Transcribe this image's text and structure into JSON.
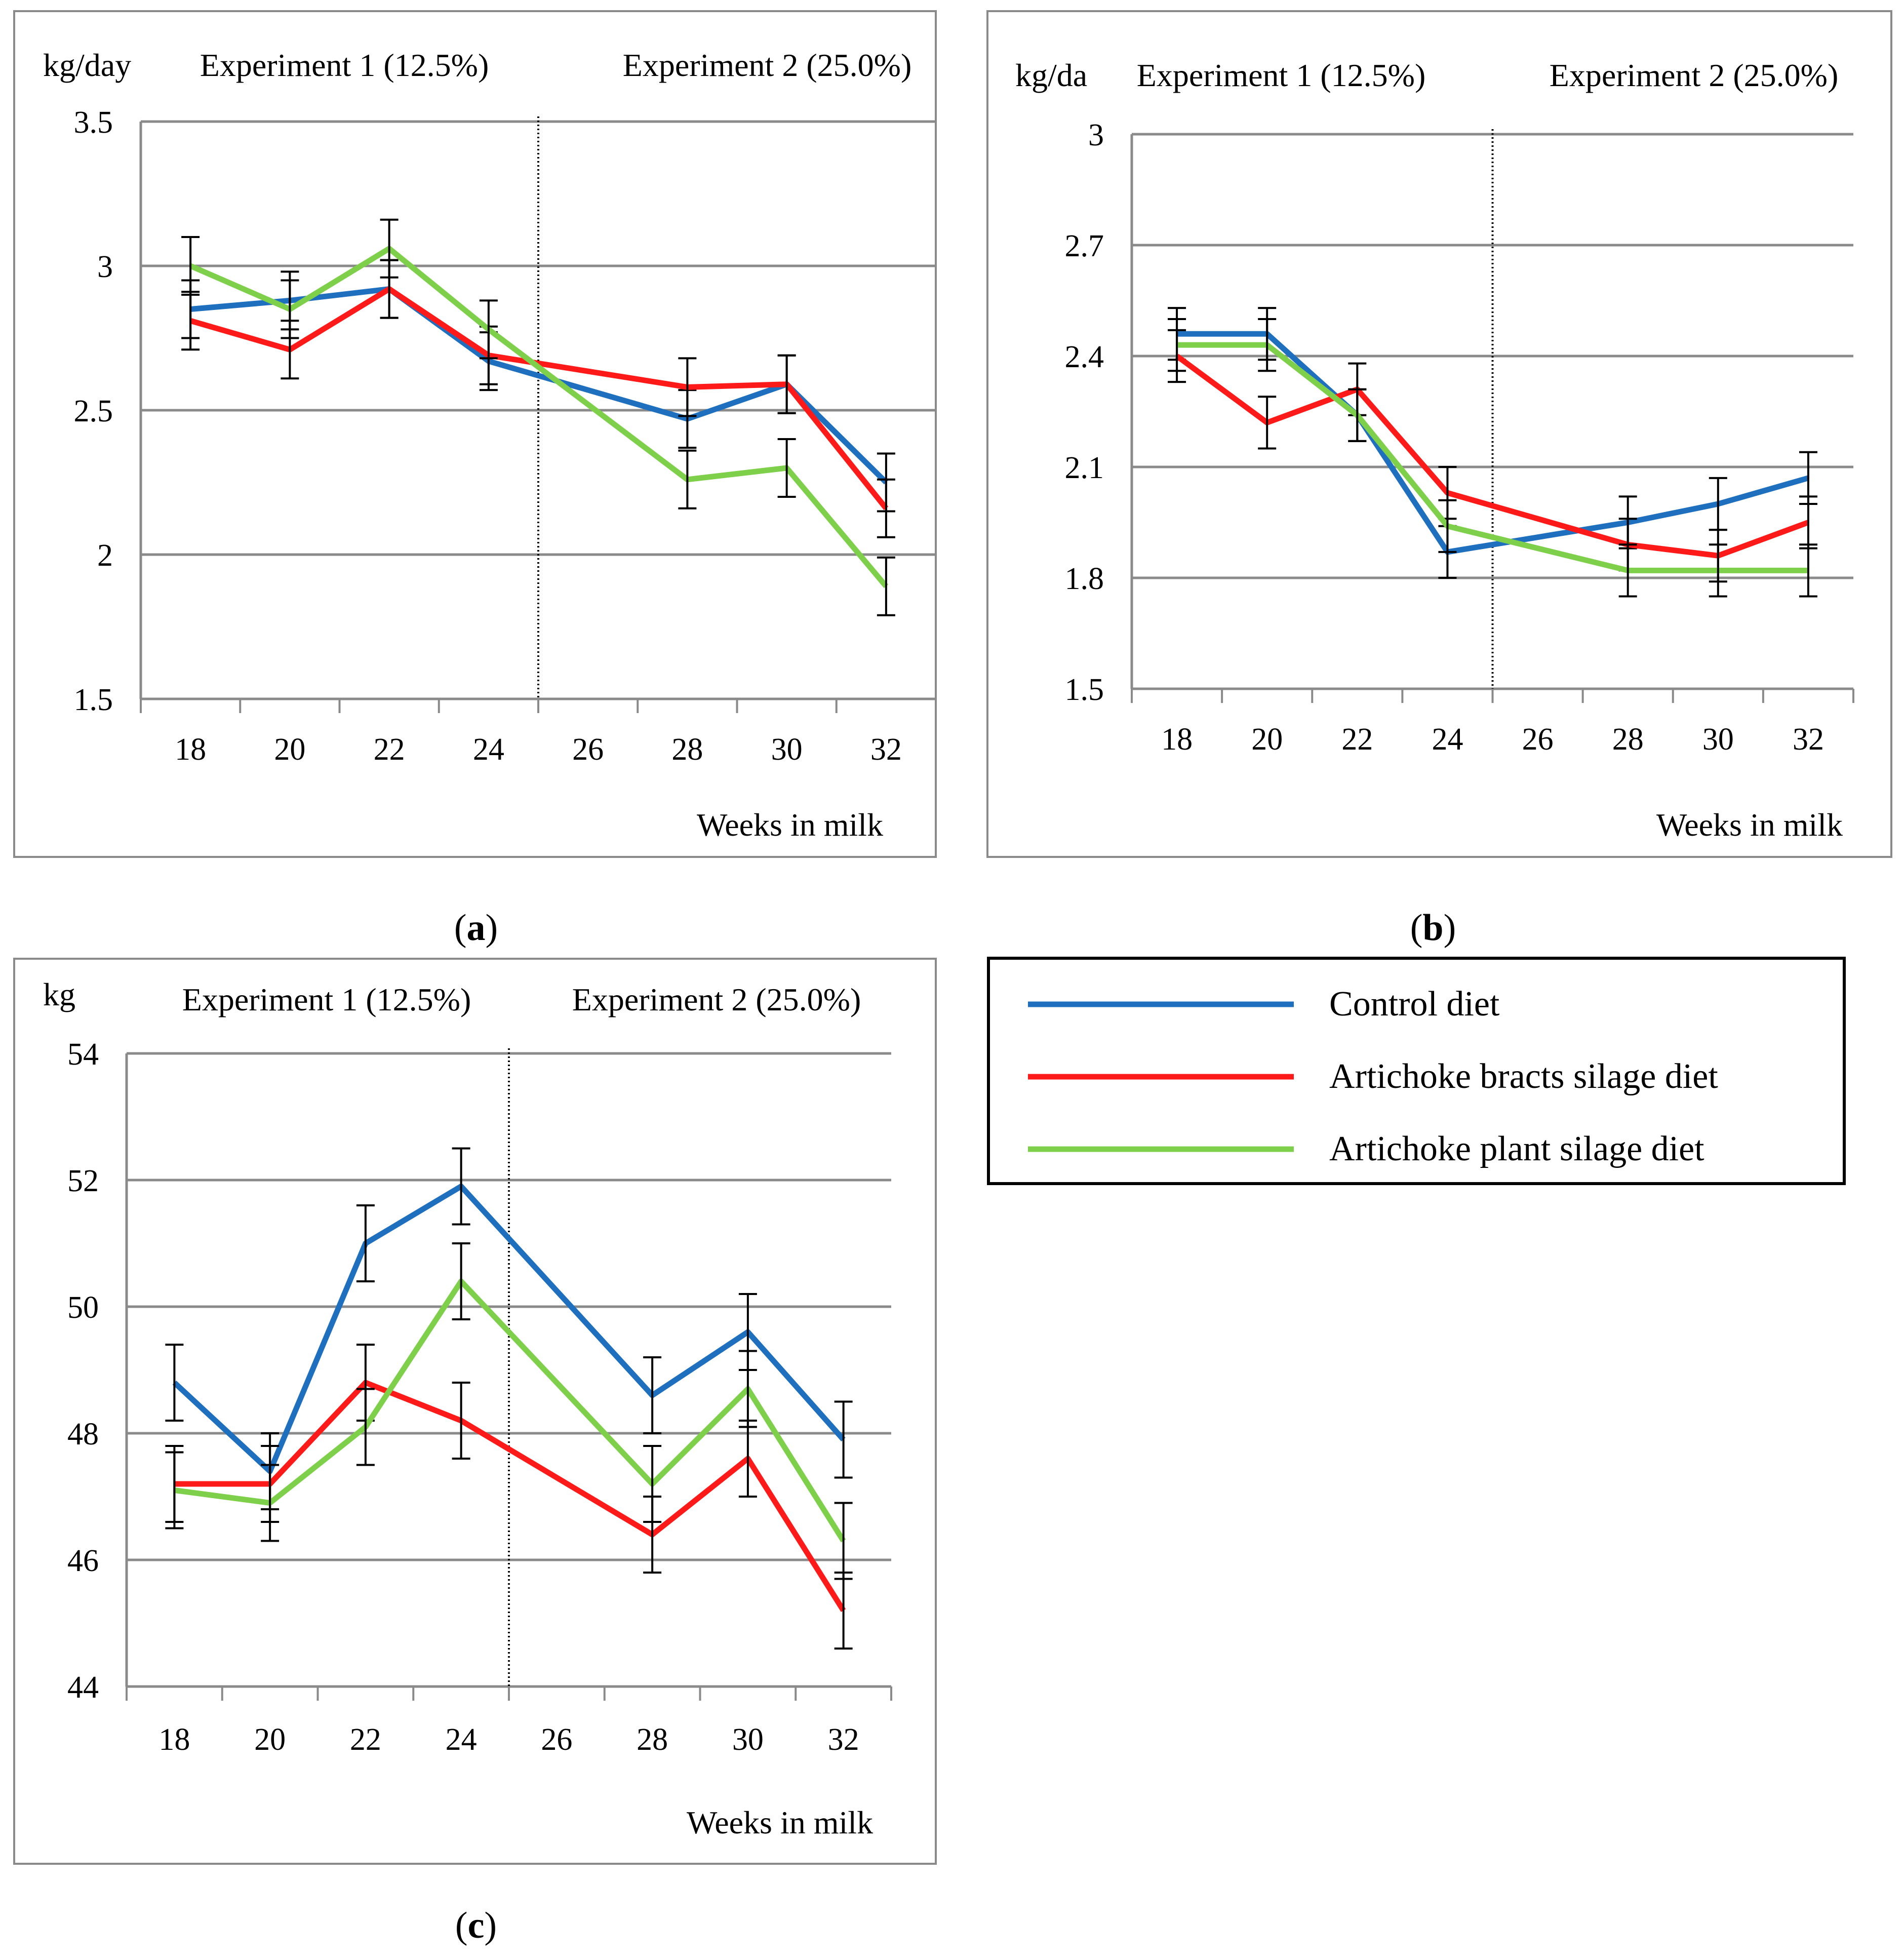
{
  "legend": {
    "items": [
      {
        "label": "Control diet",
        "color": "#1f6fbf"
      },
      {
        "label": "Artichoke bracts silage diet",
        "color": "#ff1a1a"
      },
      {
        "label": "Artichoke plant silage diet",
        "color": "#7ed04b"
      }
    ]
  },
  "chart_data": [
    {
      "id": "a",
      "type": "line",
      "caption": "a",
      "ylabel": "kg/day",
      "xlabel": "Weeks in milk",
      "ylim": [
        1.5,
        3.5
      ],
      "yticks": [
        "1.5",
        "2",
        "2.5",
        "3",
        "3.5"
      ],
      "ytick_values": [
        1.5,
        2,
        2.5,
        3,
        3.5
      ],
      "categories": [
        "18",
        "20",
        "22",
        "24",
        "26",
        "28",
        "30",
        "32"
      ],
      "experiment_labels": [
        "Experiment 1 (12.5%)",
        "Experiment 2 (25.0%)"
      ],
      "divider_after_week": 24,
      "grid": true,
      "series": [
        {
          "name": "Control diet",
          "values": [
            2.85,
            2.88,
            2.92,
            2.67,
            null,
            2.47,
            2.59,
            2.25
          ],
          "errors": [
            0.1,
            0.1,
            0.1,
            0.1,
            null,
            0.1,
            0.1,
            0.1
          ]
        },
        {
          "name": "Artichoke bracts silage diet",
          "values": [
            2.81,
            2.71,
            2.92,
            2.69,
            null,
            2.58,
            2.59,
            2.16
          ],
          "errors": [
            0.1,
            0.1,
            0.1,
            0.1,
            null,
            0.1,
            0.1,
            0.1
          ]
        },
        {
          "name": "Artichoke plant silage diet",
          "values": [
            3.0,
            2.85,
            3.06,
            2.78,
            null,
            2.26,
            2.3,
            1.89
          ],
          "errors": [
            0.1,
            0.1,
            0.1,
            0.1,
            null,
            0.1,
            0.1,
            0.1
          ]
        }
      ]
    },
    {
      "id": "b",
      "type": "line",
      "caption": "b",
      "ylabel": "kg/da",
      "xlabel": "Weeks in milk",
      "ylim": [
        1.5,
        3.0
      ],
      "yticks": [
        "1.5",
        "1.8",
        "2.1",
        "2.4",
        "2.7",
        "3"
      ],
      "ytick_values": [
        1.5,
        1.8,
        2.1,
        2.4,
        2.7,
        3.0
      ],
      "categories": [
        "18",
        "20",
        "22",
        "24",
        "26",
        "28",
        "30",
        "32"
      ],
      "experiment_labels": [
        "Experiment 1 (12.5%)",
        "Experiment 2 (25.0%)"
      ],
      "divider_after_week": 24,
      "grid": true,
      "series": [
        {
          "name": "Control diet",
          "values": [
            2.46,
            2.46,
            2.24,
            1.87,
            null,
            1.95,
            2.0,
            2.07
          ],
          "errors": [
            0.07,
            0.07,
            0.07,
            0.07,
            null,
            0.07,
            0.07,
            0.07
          ]
        },
        {
          "name": "Artichoke bracts silage diet",
          "values": [
            2.4,
            2.22,
            2.31,
            2.03,
            null,
            1.89,
            1.86,
            1.95
          ],
          "errors": [
            0.07,
            0.07,
            0.07,
            0.07,
            null,
            0.07,
            0.07,
            0.07
          ]
        },
        {
          "name": "Artichoke plant silage diet",
          "values": [
            2.43,
            2.43,
            2.24,
            1.94,
            null,
            1.82,
            1.82,
            1.82
          ],
          "errors": [
            0.07,
            0.07,
            0.07,
            0.07,
            null,
            0.07,
            0.07,
            0.07
          ]
        }
      ]
    },
    {
      "id": "c",
      "type": "line",
      "caption": "c",
      "ylabel": "kg",
      "xlabel": "Weeks in milk",
      "ylim": [
        44,
        54
      ],
      "yticks": [
        "44",
        "46",
        "48",
        "50",
        "52",
        "54"
      ],
      "ytick_values": [
        44,
        46,
        48,
        50,
        52,
        54
      ],
      "categories": [
        "18",
        "20",
        "22",
        "24",
        "26",
        "28",
        "30",
        "32"
      ],
      "experiment_labels": [
        "Experiment 1 (12.5%)",
        "Experiment 2 (25.0%)"
      ],
      "divider_after_week": 24,
      "grid": true,
      "series": [
        {
          "name": "Control diet",
          "values": [
            48.8,
            47.4,
            51.0,
            51.9,
            null,
            48.6,
            49.6,
            47.9
          ],
          "errors": [
            0.6,
            0.6,
            0.6,
            0.6,
            null,
            0.6,
            0.6,
            0.6
          ]
        },
        {
          "name": "Artichoke bracts silage diet",
          "values": [
            47.2,
            47.2,
            48.8,
            48.2,
            null,
            46.4,
            47.6,
            45.2
          ],
          "errors": [
            0.6,
            0.6,
            0.6,
            0.6,
            null,
            0.6,
            0.6,
            0.6
          ]
        },
        {
          "name": "Artichoke plant silage diet",
          "values": [
            47.1,
            46.9,
            48.1,
            50.4,
            null,
            47.2,
            48.7,
            46.3
          ],
          "errors": [
            0.6,
            0.6,
            0.6,
            0.6,
            null,
            0.6,
            0.6,
            0.6
          ]
        }
      ]
    }
  ]
}
